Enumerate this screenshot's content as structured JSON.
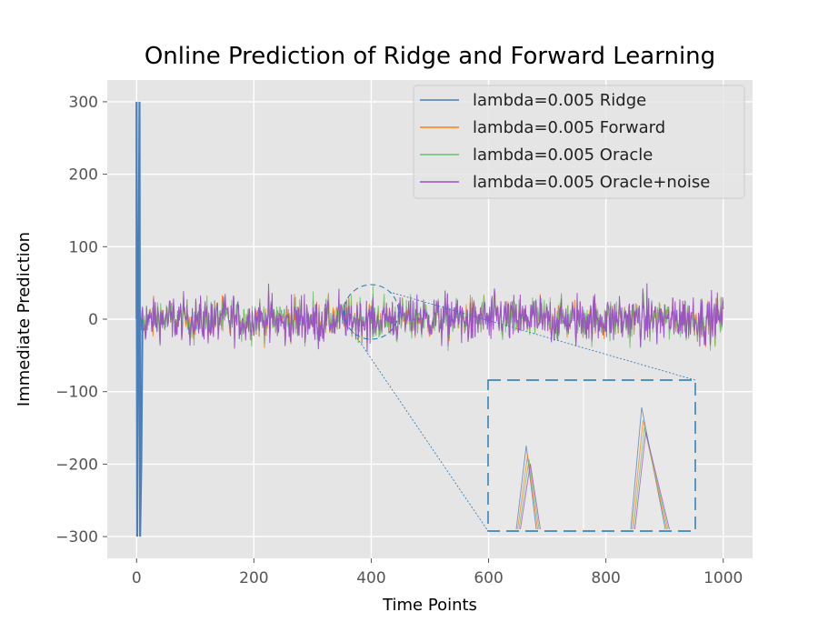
{
  "chart_data": {
    "type": "line",
    "title": "Online Prediction of Ridge and Forward Learning",
    "xlabel": "Time Points",
    "ylabel": "Immediate Prediction",
    "xlim": [
      -50,
      1050
    ],
    "ylim": [
      -330,
      330
    ],
    "xticks": [
      0,
      200,
      400,
      600,
      800,
      1000
    ],
    "yticks": [
      300,
      200,
      100,
      0,
      -100,
      -200,
      -300
    ],
    "xtick_labels": [
      "0",
      "200",
      "400",
      "600",
      "800",
      "1000"
    ],
    "ytick_labels": [
      "300",
      "200",
      "100",
      "0",
      "−100",
      "−200",
      "−300"
    ],
    "grid": true,
    "legend_position": "top-right",
    "noise_band": {
      "x_range": [
        0,
        1000
      ],
      "amplitude_approx": 25
    },
    "series": [
      {
        "name": "lambda=0.005 Ridge",
        "color": "#4a7fba",
        "spikes": [
          {
            "x": 0,
            "y": 300
          },
          {
            "x": 1,
            "y": -300
          },
          {
            "x": 5,
            "y": 300
          },
          {
            "x": 6,
            "y": -300
          },
          {
            "x": 8,
            "y": -200
          }
        ]
      },
      {
        "name": "lambda=0.005 Forward",
        "color": "#ff7f0e"
      },
      {
        "name": "lambda=0.005 Oracle",
        "color": "#6abf6a"
      },
      {
        "name": "lambda=0.005 Oracle+noise",
        "color": "#9b4fc9"
      }
    ],
    "annotations": [
      {
        "type": "zoom-circle",
        "center": {
          "x": 400,
          "y": 10
        },
        "zoom_color": "#1f77b4"
      }
    ]
  }
}
